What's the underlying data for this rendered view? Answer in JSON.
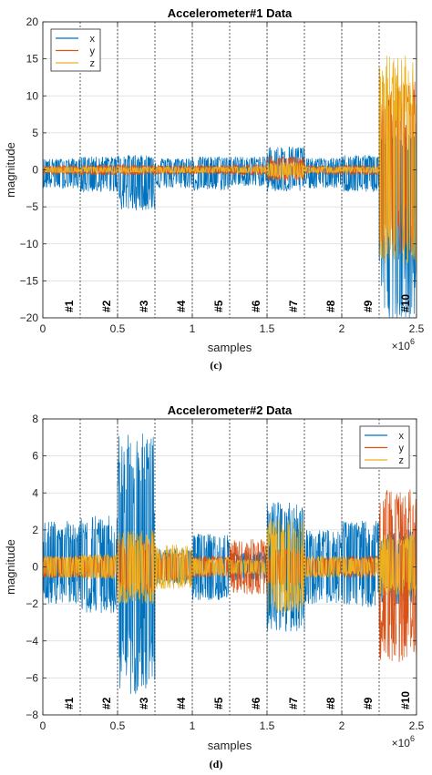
{
  "chart_data": [
    {
      "type": "line",
      "title": "Accelerometer#1 Data",
      "xlabel": "samples",
      "ylabel": "magnitude",
      "x_exponent": "×10",
      "x_exponent_power": "6",
      "caption": "(c)",
      "xlim": [
        0,
        2.5
      ],
      "ylim": [
        -20,
        20
      ],
      "xticks": [
        0,
        0.5,
        1,
        1.5,
        2,
        2.5
      ],
      "yticks": [
        20,
        15,
        10,
        5,
        0,
        -5,
        -10,
        -15,
        -20
      ],
      "grid": true,
      "legend": {
        "position": "top-left",
        "entries": [
          "x",
          "y",
          "z"
        ]
      },
      "segment_boundaries": [
        0.25,
        0.5,
        0.75,
        1.0,
        1.25,
        1.5,
        1.75,
        2.0,
        2.25
      ],
      "segment_labels": [
        "#1",
        "#2",
        "#3",
        "#4",
        "#5",
        "#6",
        "#7",
        "#8",
        "#9",
        "#10"
      ],
      "series": [
        {
          "name": "x",
          "color": "#0072BD",
          "segment_ranges": [
            [
              -2.5,
              1.5
            ],
            [
              -3,
              1.8
            ],
            [
              -5.5,
              2
            ],
            [
              -2.5,
              1.6
            ],
            [
              -2.8,
              1.8
            ],
            [
              -2.2,
              1.8
            ],
            [
              -3,
              3.2
            ],
            [
              -2.5,
              1.6
            ],
            [
              -3,
              2
            ],
            [
              -20,
              5
            ]
          ]
        },
        {
          "name": "y",
          "color": "#D95319",
          "segment_ranges": [
            [
              -0.6,
              0.6
            ],
            [
              -0.7,
              0.7
            ],
            [
              -0.7,
              0.7
            ],
            [
              -0.6,
              0.6
            ],
            [
              -0.6,
              0.6
            ],
            [
              -0.7,
              0.7
            ],
            [
              -1.5,
              1.8
            ],
            [
              -0.6,
              0.6
            ],
            [
              -0.7,
              0.7
            ],
            [
              -12,
              12
            ]
          ]
        },
        {
          "name": "z",
          "color": "#EDB120",
          "segment_ranges": [
            [
              -0.4,
              0.4
            ],
            [
              -0.4,
              0.4
            ],
            [
              -0.4,
              0.4
            ],
            [
              -0.4,
              0.4
            ],
            [
              -0.4,
              0.4
            ],
            [
              -0.4,
              0.4
            ],
            [
              -1,
              1
            ],
            [
              -0.4,
              0.4
            ],
            [
              -0.4,
              0.4
            ],
            [
              -13.5,
              15.5
            ]
          ]
        }
      ]
    },
    {
      "type": "line",
      "title": "Accelerometer#2 Data",
      "xlabel": "samples",
      "ylabel": "magnitude",
      "x_exponent": "×10",
      "x_exponent_power": "6",
      "caption": "(d)",
      "xlim": [
        0,
        2.5
      ],
      "ylim": [
        -8,
        8
      ],
      "xticks": [
        0,
        0.5,
        1,
        1.5,
        2,
        2.5
      ],
      "yticks": [
        8,
        6,
        4,
        2,
        0,
        -2,
        -4,
        -6,
        -8
      ],
      "grid": true,
      "legend": {
        "position": "top-right",
        "entries": [
          "x",
          "y",
          "z"
        ]
      },
      "segment_boundaries": [
        0.25,
        0.5,
        0.75,
        1.0,
        1.25,
        1.5,
        1.75,
        2.0,
        2.25
      ],
      "segment_labels": [
        "#1",
        "#2",
        "#3",
        "#4",
        "#5",
        "#6",
        "#7",
        "#8",
        "#9",
        "#10"
      ],
      "series": [
        {
          "name": "x",
          "color": "#0072BD",
          "segment_ranges": [
            [
              -2,
              2.5
            ],
            [
              -2.5,
              2.8
            ],
            [
              -7,
              7.2
            ],
            [
              -1,
              1
            ],
            [
              -1.8,
              1.8
            ],
            [
              -0.8,
              0.8
            ],
            [
              -3.5,
              3.5
            ],
            [
              -2,
              2
            ],
            [
              -2.2,
              2.5
            ],
            [
              -2,
              2
            ]
          ]
        },
        {
          "name": "y",
          "color": "#D95319",
          "segment_ranges": [
            [
              -0.6,
              0.6
            ],
            [
              -0.6,
              0.6
            ],
            [
              -1.5,
              1.5
            ],
            [
              -0.8,
              0.8
            ],
            [
              -0.6,
              0.6
            ],
            [
              -1.5,
              1.5
            ],
            [
              -1,
              1
            ],
            [
              -0.5,
              0.5
            ],
            [
              -0.6,
              0.6
            ],
            [
              -5.2,
              4.2
            ]
          ]
        },
        {
          "name": "z",
          "color": "#EDB120",
          "segment_ranges": [
            [
              -0.6,
              0.6
            ],
            [
              -0.7,
              0.7
            ],
            [
              -2,
              2
            ],
            [
              -1.2,
              1.2
            ],
            [
              -0.5,
              0.5
            ],
            [
              -0.4,
              0.4
            ],
            [
              -2.5,
              2.6
            ],
            [
              -0.6,
              0.6
            ],
            [
              -0.5,
              0.5
            ],
            [
              -1.6,
              1.8
            ]
          ]
        }
      ]
    }
  ]
}
